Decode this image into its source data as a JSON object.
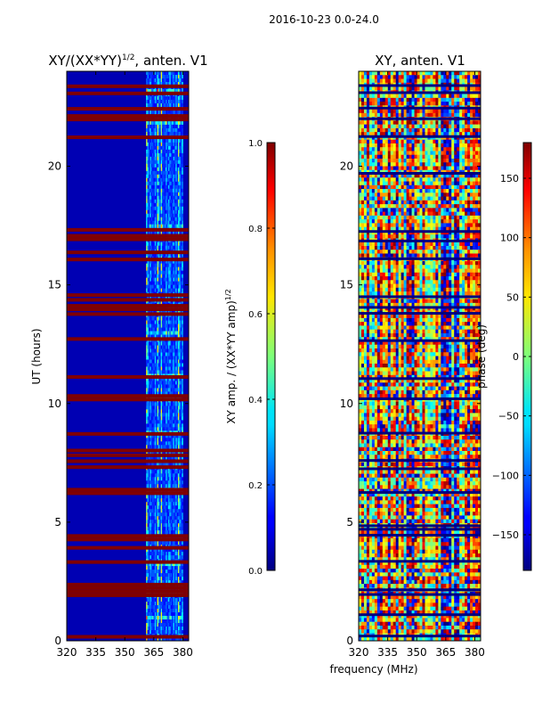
{
  "figure_title": "2016-10-23 0.0-24.0",
  "chart_data": [
    {
      "type": "heatmap",
      "title": "XY/(XX*YY)^1/2, anten. V1",
      "title_main": "XY/(XX*YY)",
      "title_exp": "1/2",
      "title_rest": ", anten. V1",
      "xlabel": "",
      "ylabel": "UT (hours)",
      "xlim": [
        320,
        383
      ],
      "ylim": [
        0,
        24
      ],
      "xticks": [
        320,
        335,
        350,
        365,
        380
      ],
      "yticks": [
        0,
        5,
        10,
        15,
        20
      ],
      "colormap": "jet",
      "colorbar": {
        "label": "XY amp. / (XX*YY amp)^1/2",
        "label_main": "XY amp. / (XX*YY amp)",
        "label_exp": "1/2",
        "range": [
          0.0,
          1.0
        ],
        "ticks": [
          "0.0",
          "0.2",
          "0.4",
          "0.6",
          "0.8",
          "1.0"
        ]
      },
      "data_summary": {
        "background_value": 0.05,
        "active_band_mhz": [
          361,
          380
        ],
        "saturated_rows_ut_hours": [
          0.15,
          1.9,
          2.05,
          2.2,
          2.35,
          3.3,
          3.9,
          4.25,
          4.4,
          6.2,
          6.35,
          7.3,
          7.55,
          7.8,
          8.0,
          8.7,
          10.15,
          10.3,
          11.1,
          12.7,
          13.75,
          13.95,
          14.1,
          14.35,
          14.55,
          16.05,
          16.35,
          16.9,
          17.05,
          17.3,
          21.2,
          21.95,
          22.1,
          22.4,
          23.05,
          23.35
        ]
      }
    },
    {
      "type": "heatmap",
      "title": "XY, anten. V1",
      "xlabel": "frequency (MHz)",
      "ylabel": "",
      "xlim": [
        320,
        383
      ],
      "ylim": [
        0,
        24
      ],
      "xticks": [
        320,
        335,
        350,
        365,
        380
      ],
      "yticks": [
        0,
        5,
        10,
        15,
        20
      ],
      "colormap": "jet",
      "colorbar": {
        "label": "phase (deg)",
        "range": [
          -180,
          180
        ],
        "ticks": [
          "-150",
          "-100",
          "-50",
          "0",
          "50",
          "100",
          "150"
        ]
      },
      "data_summary": {
        "value_range_deg": [
          -180,
          180
        ],
        "dark_rows_ut_hours": [
          0.2,
          1.1,
          1.95,
          2.15,
          3.35,
          4.45,
          4.7,
          4.85,
          6.25,
          7.25,
          7.6,
          8.75,
          10.2,
          11.05,
          12.65,
          13.8,
          14.05,
          14.5,
          16.1,
          16.85,
          17.25,
          19.7,
          21.25,
          22.0,
          22.45,
          23.1,
          23.4
        ]
      }
    }
  ]
}
